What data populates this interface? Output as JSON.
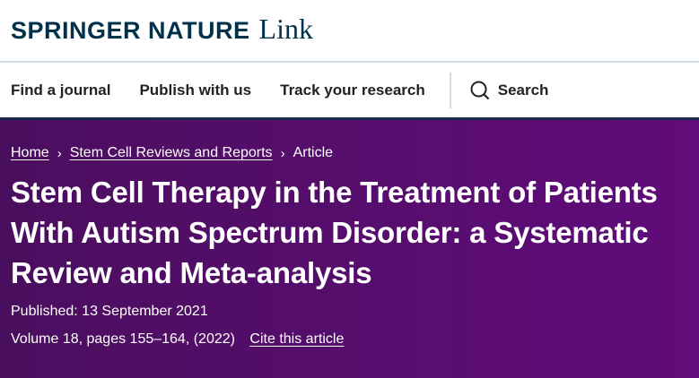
{
  "logo": {
    "brand": "SPRINGER NATURE",
    "product": "Link"
  },
  "nav": {
    "items": [
      "Find a journal",
      "Publish with us",
      "Track your research"
    ],
    "search_label": "Search"
  },
  "breadcrumb": {
    "home": "Home",
    "journal": "Stem Cell Reviews and Reports",
    "current": "Article"
  },
  "article": {
    "title": "Stem Cell Therapy in the Treatment of Patients With Autism Spectrum Disorder: a Systematic Review and Meta-analysis",
    "published": "Published: 13 September 2021",
    "volume": "Volume 18, pages 155–164, (2022)",
    "cite": "Cite this article"
  },
  "colors": {
    "brand": "#01324b",
    "hero": "#560d6c"
  }
}
